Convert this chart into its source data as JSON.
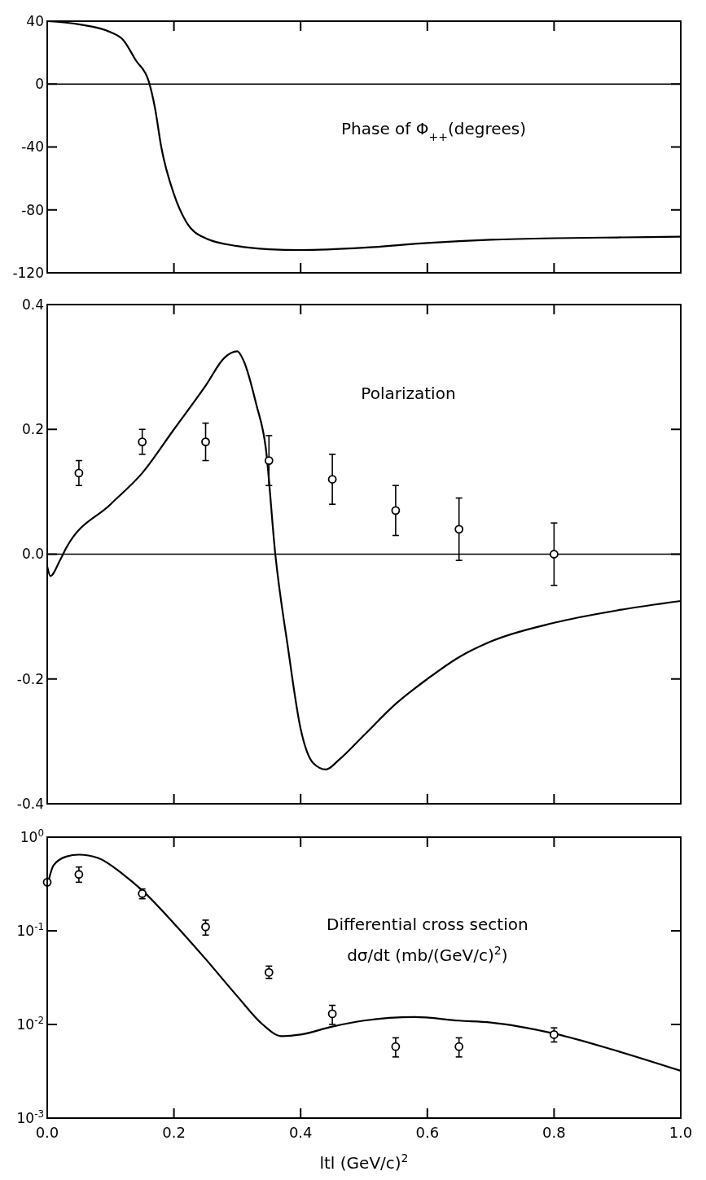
{
  "chart_data": [
    {
      "type": "line",
      "title": "Phase of Φ$_{++}$(degrees)",
      "xlim": [
        0,
        1
      ],
      "xticks": [
        0.2,
        0.4,
        0.6,
        0.8
      ],
      "ylim": [
        -120,
        40
      ],
      "yticks": [
        -120,
        -80,
        -40,
        0,
        40
      ],
      "tick_labels": "y",
      "ref_lines": [
        {
          "axis": "y",
          "value": 0
        }
      ],
      "series": [
        {
          "type": "line",
          "color": "#000000",
          "x": [
            0,
            0.05,
            0.1,
            0.12,
            0.14,
            0.16,
            0.17,
            0.18,
            0.2,
            0.22,
            0.25,
            0.3,
            0.35,
            0.4,
            0.5,
            0.6,
            0.7,
            0.8,
            0.9,
            1.0
          ],
          "values": [
            40,
            38,
            33,
            28,
            15,
            2,
            -15,
            -40,
            -70,
            -88,
            -98,
            -103,
            -105,
            -105.5,
            -104,
            -101,
            -99,
            -98,
            -97.5,
            -97
          ]
        }
      ]
    },
    {
      "type": "line",
      "title": "Polarization",
      "xlim": [
        0,
        1
      ],
      "xticks": [
        0.2,
        0.4,
        0.6,
        0.8
      ],
      "ylim": [
        -0.4,
        0.4
      ],
      "yticks": [
        -0.4,
        -0.2,
        {
          "value": 0,
          "label": "0.0"
        },
        0.2,
        0.4
      ],
      "tick_labels": "y",
      "ref_lines": [
        {
          "axis": "y",
          "value": 0
        }
      ],
      "series": [
        {
          "type": "line",
          "color": "#000000",
          "x": [
            0,
            0.005,
            0.02,
            0.03,
            0.1,
            0.15,
            0.2,
            0.25,
            0.28,
            0.3,
            0.31,
            0.33,
            0.345,
            0.36,
            0.38,
            0.4,
            0.42,
            0.44,
            0.46,
            0.5,
            0.55,
            0.6,
            0.65,
            0.7,
            0.8,
            0.9,
            1.0
          ],
          "values": [
            -0.02,
            -0.035,
            -0.01,
            0.01,
            0.08,
            0.13,
            0.2,
            0.27,
            0.315,
            0.325,
            0.31,
            0.24,
            0.17,
            0.0,
            -0.15,
            -0.28,
            -0.335,
            -0.345,
            -0.33,
            -0.29,
            -0.24,
            -0.2,
            -0.165,
            -0.14,
            -0.11,
            -0.09,
            -0.075
          ]
        },
        {
          "type": "scatter",
          "color": "#000000",
          "marker": "circle",
          "x": [
            0.05,
            0.15,
            0.25,
            0.35,
            0.45,
            0.55,
            0.65,
            0.8
          ],
          "values": [
            0.13,
            0.18,
            0.18,
            0.15,
            0.12,
            0.07,
            0.04,
            0.0
          ],
          "errors": [
            [
              0.11,
              0.15
            ],
            [
              0.16,
              0.2
            ],
            [
              0.15,
              0.21
            ],
            [
              0.11,
              0.19
            ],
            [
              0.08,
              0.16
            ],
            [
              0.03,
              0.11
            ],
            [
              -0.01,
              0.09
            ],
            [
              -0.05,
              0.05
            ]
          ]
        }
      ]
    },
    {
      "type": "line",
      "title": "Differential cross section",
      "subtitle": "dσ/dt (mb/(GeV/c)$^{2}$)",
      "xlabel": "ltl (GeV/c)$^{2}$",
      "xlim": [
        0,
        1
      ],
      "xticks": [
        {
          "value": 0,
          "label": "0.0"
        },
        0.2,
        0.4,
        0.6,
        0.8,
        {
          "value": 1,
          "label": "1.0"
        }
      ],
      "log": "y",
      "ylim": [
        0.001,
        1
      ],
      "yticks": [
        {
          "value": 0.001,
          "label": "10$^{-3}$"
        },
        {
          "value": 0.01,
          "label": "10$^{-2}$"
        },
        {
          "value": 0.1,
          "label": "10$^{-1}$"
        },
        {
          "value": 1,
          "label": "10$^{0}$"
        }
      ],
      "series": [
        {
          "type": "line",
          "color": "#000000",
          "x": [
            0,
            0.01,
            0.03,
            0.05,
            0.08,
            0.12,
            0.15,
            0.2,
            0.25,
            0.3,
            0.34,
            0.37,
            0.4,
            0.45,
            0.5,
            0.58,
            0.65,
            0.7,
            0.8,
            0.9,
            1.0
          ],
          "values": [
            0.3,
            0.5,
            0.62,
            0.65,
            0.6,
            0.4,
            0.27,
            0.12,
            0.05,
            0.02,
            0.01,
            0.0075,
            0.0078,
            0.0095,
            0.011,
            0.012,
            0.011,
            0.0105,
            0.008,
            0.0052,
            0.0032
          ]
        },
        {
          "type": "scatter",
          "color": "#000000",
          "marker": "circle",
          "x": [
            0,
            0.05,
            0.15,
            0.25,
            0.35,
            0.45,
            0.55,
            0.65,
            0.8
          ],
          "values": [
            0.33,
            0.4,
            0.25,
            0.11,
            0.036,
            0.013,
            0.0058,
            0.0058,
            0.0078
          ],
          "errors": [
            null,
            [
              0.33,
              0.48
            ],
            [
              0.22,
              0.28
            ],
            [
              0.09,
              0.13
            ],
            [
              0.031,
              0.042
            ],
            [
              0.01,
              0.016
            ],
            [
              0.0045,
              0.0072
            ],
            [
              0.0045,
              0.0072
            ],
            [
              0.0065,
              0.0092
            ]
          ]
        }
      ]
    }
  ]
}
